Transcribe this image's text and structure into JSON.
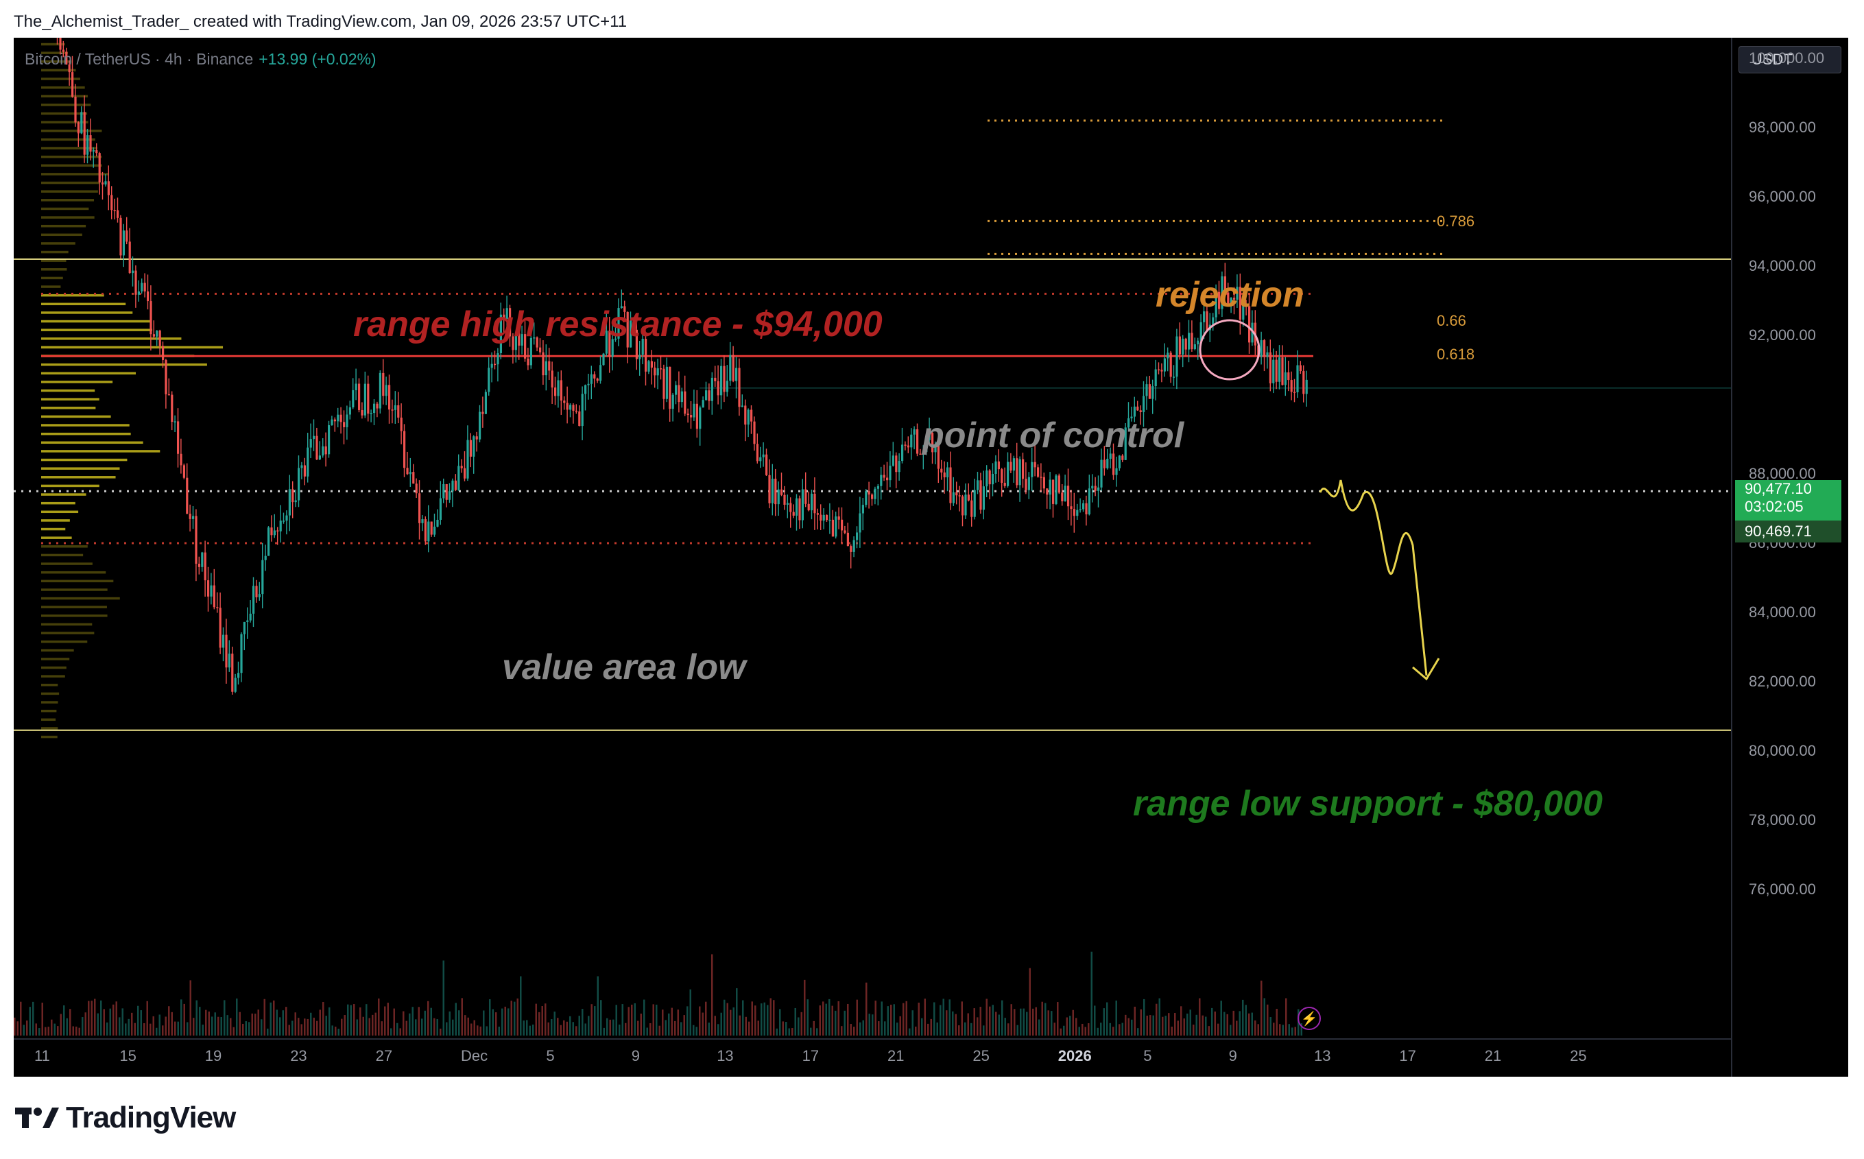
{
  "header": {
    "text": "The_Alchemist_Trader_ created with TradingView.com, Jan 09, 2026 23:57 UTC+11"
  },
  "legend": {
    "symbol": "Bitcoin / TetherUS · 4h · Binance",
    "change": "+13.99 (+0.02%)"
  },
  "currency": "USDT",
  "price_axis": [
    "102,000.00",
    "100,000.00",
    "98,000.00",
    "96,000.00",
    "94,000.00",
    "92,000.00",
    "88,000.00",
    "86,000.00",
    "84,000.00",
    "82,000.00",
    "80,000.00",
    "78,000.00",
    "76,000.00"
  ],
  "price_tags": {
    "last_price": "90,477.10",
    "countdown": "03:02:05",
    "prev_price": "90,469.71"
  },
  "time_axis": [
    "11",
    "15",
    "19",
    "23",
    "27",
    "Dec",
    "5",
    "9",
    "13",
    "17",
    "21",
    "25",
    "2026",
    "5",
    "9",
    "13",
    "17",
    "21",
    "25"
  ],
  "annotations": {
    "range_high": "range high resistance - $94,000",
    "rejection": "rejection",
    "poc": "point of control",
    "val": "value area low",
    "range_low": "range low support - $80,000"
  },
  "fib_levels": [
    "0.786",
    "0.66",
    "0.618"
  ],
  "colors": {
    "background": "#000000",
    "range_high_text": "#b22222",
    "rejection_text": "#d4862a",
    "poc_text": "#8a8a8a",
    "range_low_text": "#1e7a1e",
    "up_candle": "#26a69a",
    "down_candle": "#ef5350",
    "volume_profile": "#c8b81c",
    "last_price_tag": "#22ab55",
    "prev_price_tag": "#1f4f2a"
  },
  "branding": {
    "logo_text": "TradingView"
  },
  "chart_data": {
    "type": "candlestick",
    "title": "",
    "y_range": [
      75000,
      103000
    ],
    "support": 80600,
    "resistance": 94200,
    "poc_price": 91400,
    "value_area_low": 86000,
    "value_area_high": 93200,
    "last_price": 90477.1,
    "fib_prices": [
      98200,
      95300,
      94350
    ],
    "ohlc_path": [
      [
        103000,
        101000
      ],
      [
        98000,
        96000
      ],
      [
        95000,
        94000
      ],
      [
        92000,
        90000
      ],
      [
        86000,
        84000
      ],
      [
        82000,
        84000
      ],
      [
        86500,
        87000
      ],
      [
        88500,
        87500
      ],
      [
        90000,
        91200
      ],
      [
        90500,
        91000
      ],
      [
        86500,
        84800
      ],
      [
        88000,
        90000
      ],
      [
        92500,
        93000
      ],
      [
        91200,
        89000
      ],
      [
        89500,
        89800
      ],
      [
        92500,
        93500
      ],
      [
        91000,
        90500
      ],
      [
        89500,
        91500
      ],
      [
        91000,
        89000
      ],
      [
        87500,
        86500
      ],
      [
        87000,
        85000
      ],
      [
        86000,
        86500
      ],
      [
        88000,
        87500
      ],
      [
        89000,
        88500
      ],
      [
        87000,
        87300
      ],
      [
        88000,
        87500
      ],
      [
        88000,
        88500
      ],
      [
        87000,
        87500
      ],
      [
        88500,
        89000
      ],
      [
        90500,
        91000
      ],
      [
        92000,
        94000
      ],
      [
        93500,
        92000
      ],
      [
        91000,
        90500
      ],
      [
        90500,
        90477
      ]
    ]
  }
}
